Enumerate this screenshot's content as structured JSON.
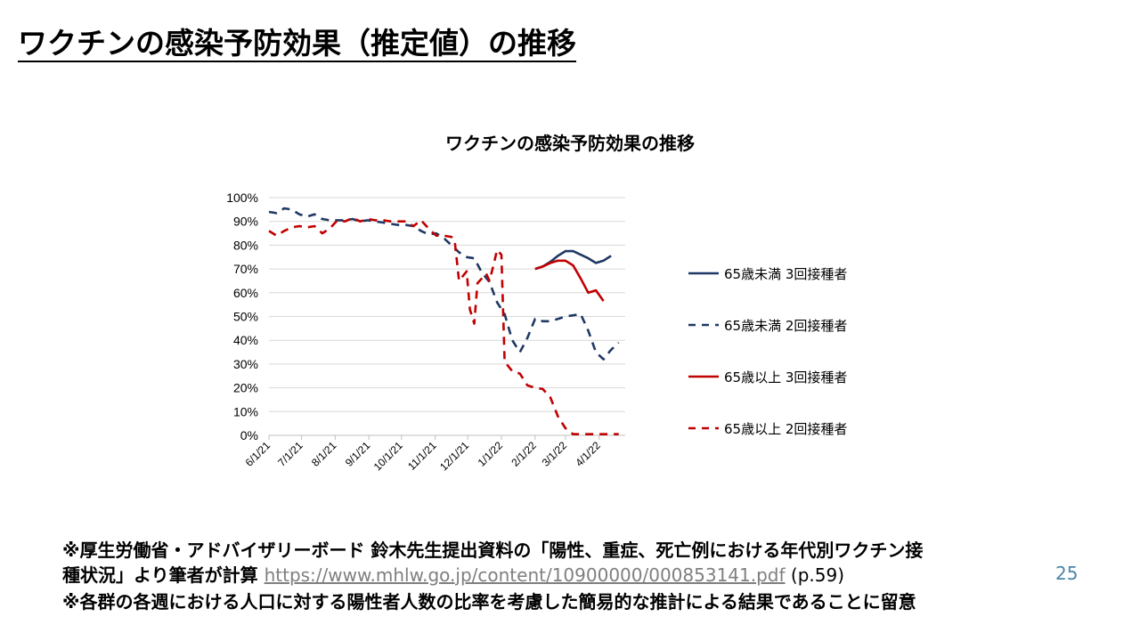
{
  "slide": {
    "title": "ワクチンの感染予防効果（推定値）の推移",
    "page_number": "25"
  },
  "footnotes": {
    "line1": "※厚生労働省・アドバイザリーボード 鈴木先生提出資料の「陽性、重症、死亡例における年代別ワクチン接",
    "line2_text": "種状況」より筆者が計算 ",
    "line2_link": "https://www.mhlw.go.jp/content/10900000/000853141.pdf",
    "line2_suffix": " (p.59)",
    "line3": "※各群の各週における人口に対する陽性者人数の比率を考慮した簡易的な推計による結果であることに留意"
  },
  "colors": {
    "navy": "#1f3864",
    "red": "#c00000",
    "grid": "#d9d9d9"
  },
  "chart_data": {
    "type": "line",
    "title": "ワクチンの感染予防効果の推移",
    "x_tick_labels": [
      "6/1/21",
      "7/1/21",
      "8/1/21",
      "9/1/21",
      "10/1/21",
      "11/1/21",
      "12/1/21",
      "1/1/22",
      "2/1/22",
      "3/1/22",
      "4/1/22"
    ],
    "y_tick_labels": [
      "0%",
      "10%",
      "20%",
      "30%",
      "40%",
      "50%",
      "60%",
      "70%",
      "80%",
      "90%",
      "100%"
    ],
    "ylim": [
      0,
      100
    ],
    "grid": "horizontal",
    "legend_position": "right",
    "series": [
      {
        "name": "65歳未満 3回接種者",
        "color": "#1f3864",
        "dash": false,
        "points": [
          [
            "2/1/22",
            70
          ],
          [
            "2/8/22",
            71
          ],
          [
            "2/15/22",
            73
          ],
          [
            "2/22/22",
            75.5
          ],
          [
            "3/1/22",
            77.5
          ],
          [
            "3/8/22",
            77.5
          ],
          [
            "3/15/22",
            76
          ],
          [
            "3/22/22",
            74.5
          ],
          [
            "3/29/22",
            72.5
          ],
          [
            "4/5/22",
            73.5
          ],
          [
            "4/12/22",
            75.5
          ]
        ]
      },
      {
        "name": "65歳未満 2回接種者",
        "color": "#1f3864",
        "dash": true,
        "points": [
          [
            "6/1/21",
            94
          ],
          [
            "6/8/21",
            93.5
          ],
          [
            "6/15/21",
            95.5
          ],
          [
            "6/22/21",
            95
          ],
          [
            "6/29/21",
            93
          ],
          [
            "7/6/21",
            92
          ],
          [
            "7/13/21",
            93
          ],
          [
            "7/20/21",
            91
          ],
          [
            "7/27/21",
            90.5
          ],
          [
            "8/3/21",
            90.5
          ],
          [
            "8/10/21",
            90.5
          ],
          [
            "8/17/21",
            91
          ],
          [
            "8/24/21",
            90
          ],
          [
            "8/31/21",
            90.5
          ],
          [
            "9/7/21",
            90
          ],
          [
            "9/14/21",
            89.5
          ],
          [
            "9/21/21",
            89
          ],
          [
            "9/28/21",
            88.5
          ],
          [
            "10/5/21",
            88.5
          ],
          [
            "10/12/21",
            88
          ],
          [
            "10/19/21",
            86
          ],
          [
            "10/26/21",
            84.5
          ],
          [
            "11/2/21",
            85
          ],
          [
            "11/9/21",
            83
          ],
          [
            "11/16/21",
            80
          ],
          [
            "11/23/21",
            77
          ],
          [
            "11/30/21",
            75
          ],
          [
            "12/7/21",
            74.5
          ],
          [
            "12/14/21",
            68.5
          ],
          [
            "12/21/21",
            64.5
          ],
          [
            "12/28/21",
            56
          ],
          [
            "1/4/22",
            51
          ],
          [
            "1/11/22",
            40
          ],
          [
            "1/18/22",
            35
          ],
          [
            "1/25/22",
            41
          ],
          [
            "2/1/22",
            49
          ],
          [
            "2/8/22",
            48
          ],
          [
            "2/15/22",
            48
          ],
          [
            "2/22/22",
            49
          ],
          [
            "3/1/22",
            50
          ],
          [
            "3/8/22",
            50.5
          ],
          [
            "3/15/22",
            51
          ],
          [
            "3/22/22",
            44
          ],
          [
            "3/29/22",
            35
          ],
          [
            "4/5/22",
            32
          ],
          [
            "4/12/22",
            36
          ],
          [
            "4/19/22",
            39
          ]
        ]
      },
      {
        "name": "65歳以上 3回接種者",
        "color": "#c00000",
        "dash": false,
        "points": [
          [
            "2/1/22",
            70
          ],
          [
            "2/8/22",
            71
          ],
          [
            "2/15/22",
            72.5
          ],
          [
            "2/22/22",
            73.5
          ],
          [
            "3/1/22",
            73.5
          ],
          [
            "3/8/22",
            71.5
          ],
          [
            "3/15/22",
            66
          ],
          [
            "3/22/22",
            60
          ],
          [
            "3/29/22",
            61
          ],
          [
            "4/5/22",
            56.5
          ]
        ]
      },
      {
        "name": "65歳以上 2回接種者",
        "color": "#c00000",
        "dash": true,
        "points": [
          [
            "6/1/21",
            86
          ],
          [
            "6/8/21",
            84
          ],
          [
            "6/15/21",
            86
          ],
          [
            "6/22/21",
            87.5
          ],
          [
            "6/29/21",
            88
          ],
          [
            "7/6/21",
            87.5
          ],
          [
            "7/13/21",
            88
          ],
          [
            "7/20/21",
            85
          ],
          [
            "7/27/21",
            87
          ],
          [
            "8/3/21",
            90.5
          ],
          [
            "8/10/21",
            90
          ],
          [
            "8/17/21",
            91.5
          ],
          [
            "8/24/21",
            90
          ],
          [
            "8/31/21",
            91
          ],
          [
            "9/7/21",
            90.5
          ],
          [
            "9/14/21",
            90.5
          ],
          [
            "9/21/21",
            90
          ],
          [
            "9/28/21",
            90
          ],
          [
            "10/5/21",
            90
          ],
          [
            "10/12/21",
            88
          ],
          [
            "10/19/21",
            90.5
          ],
          [
            "10/26/21",
            87
          ],
          [
            "11/2/21",
            84
          ],
          [
            "11/9/21",
            84
          ],
          [
            "11/16/21",
            83.5
          ],
          [
            "11/19/21",
            82
          ],
          [
            "11/23/21",
            65
          ],
          [
            "11/30/21",
            69
          ],
          [
            "12/3/21",
            53
          ],
          [
            "12/7/21",
            47
          ],
          [
            "12/10/21",
            64
          ],
          [
            "12/14/21",
            66
          ],
          [
            "12/18/21",
            68
          ],
          [
            "12/21/21",
            65
          ],
          [
            "12/25/21",
            72
          ],
          [
            "12/28/21",
            78
          ],
          [
            "1/1/22",
            76
          ],
          [
            "1/4/22",
            31
          ],
          [
            "1/11/22",
            27
          ],
          [
            "1/18/22",
            26
          ],
          [
            "1/25/22",
            21
          ],
          [
            "2/1/22",
            20
          ],
          [
            "2/8/22",
            19.5
          ],
          [
            "2/15/22",
            16
          ],
          [
            "2/22/22",
            8
          ],
          [
            "3/1/22",
            3
          ],
          [
            "3/8/22",
            0.5
          ],
          [
            "3/15/22",
            0.5
          ],
          [
            "3/22/22",
            0.5
          ],
          [
            "3/29/22",
            0.5
          ],
          [
            "4/5/22",
            0.5
          ],
          [
            "4/12/22",
            0.5
          ],
          [
            "4/19/22",
            0.5
          ]
        ]
      }
    ]
  }
}
